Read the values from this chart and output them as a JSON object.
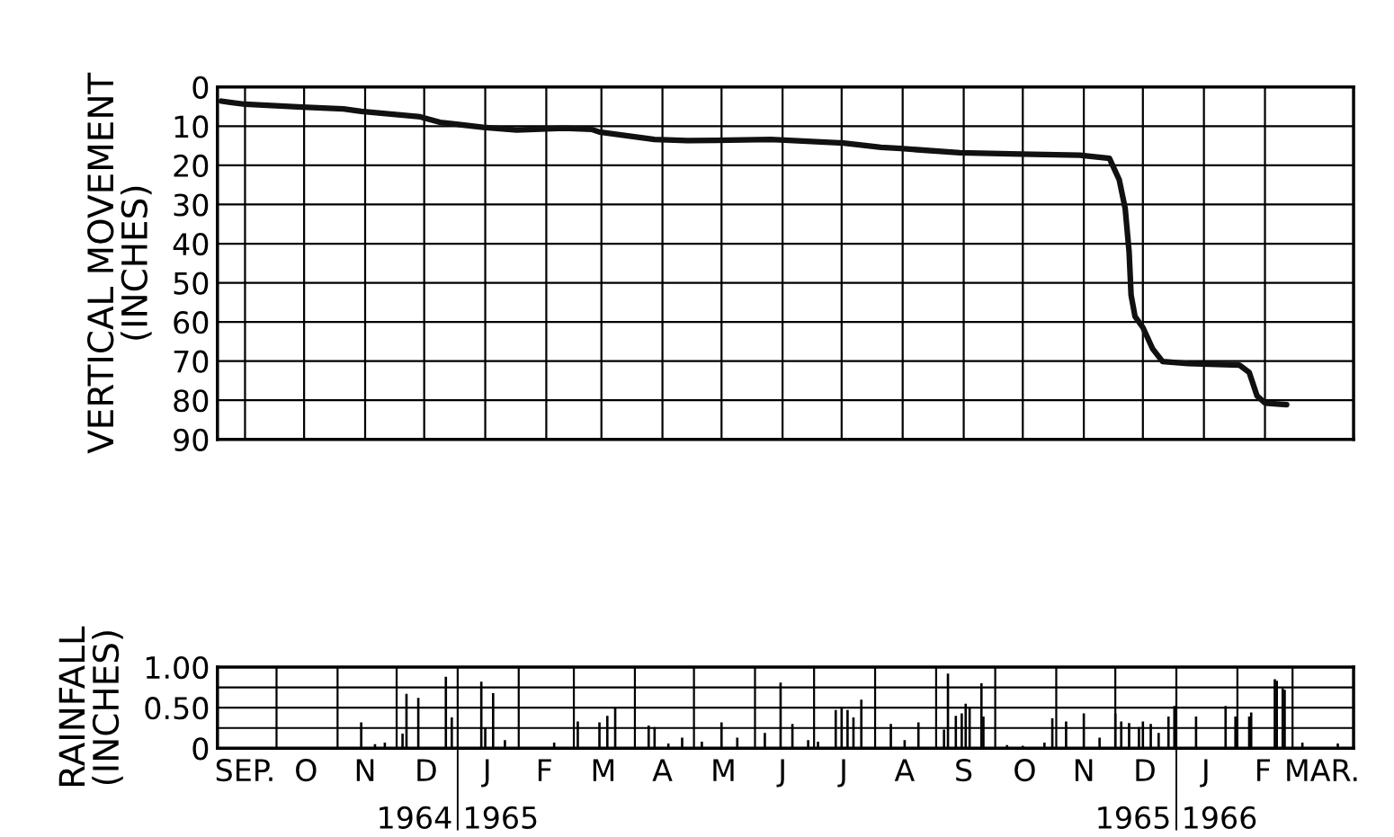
{
  "chart_data": [
    {
      "type": "line",
      "ylabel": "VERTICAL MOVEMENT\n(INCHES)",
      "x": [
        "1964-09-03",
        "1964-09-15",
        "1964-10-14",
        "1964-11-04",
        "1964-11-13",
        "1964-12-13",
        "1964-12-23",
        "1965-01-14",
        "1965-01-31",
        "1965-02-24",
        "1965-03-10",
        "1965-03-14",
        "1965-04-11",
        "1965-04-29",
        "1965-05-12",
        "1965-06-09",
        "1965-07-16",
        "1965-08-04",
        "1965-08-14",
        "1965-09-13",
        "1965-10-14",
        "1965-11-13",
        "1965-11-28",
        "1965-12-03",
        "1965-12-06",
        "1965-12-08",
        "1965-12-09",
        "1965-12-11",
        "1965-12-15",
        "1965-12-20",
        "1965-12-25",
        "1966-01-07",
        "1966-02-02",
        "1966-02-07",
        "1966-02-11",
        "1966-02-15",
        "1966-02-26"
      ],
      "series": [
        {
          "color": "#111111",
          "values": [
            3.6,
            4.4,
            5.1,
            5.6,
            6.2,
            7.6,
            9.0,
            10.3,
            11.0,
            10.5,
            10.8,
            11.5,
            13.4,
            13.7,
            13.6,
            13.4,
            14.3,
            15.4,
            15.7,
            16.8,
            17.1,
            17.4,
            18.2,
            23.7,
            31.0,
            42.1,
            53.1,
            58.6,
            61.4,
            66.9,
            70.1,
            70.6,
            71.0,
            72.9,
            78.9,
            80.7,
            81.1
          ]
        }
      ],
      "ylim": [
        90,
        0
      ],
      "yticks": [
        0,
        10,
        20,
        30,
        40,
        50,
        60,
        70,
        80,
        90
      ],
      "xlim": [
        "1964-09-01",
        "1966-04-01"
      ],
      "xticks": [
        {
          "value": "1964-09-15",
          "label": null
        },
        {
          "value": "1964-10-15",
          "label": null
        },
        {
          "value": "1964-11-15",
          "label": null
        },
        {
          "value": "1964-12-15",
          "label": null
        },
        {
          "value": "1965-01-15",
          "label": null
        },
        {
          "value": "1965-02-15",
          "label": null
        },
        {
          "value": "1965-03-15",
          "label": null
        },
        {
          "value": "1965-04-15",
          "label": null
        },
        {
          "value": "1965-05-15",
          "label": null
        },
        {
          "value": "1965-06-15",
          "label": null
        },
        {
          "value": "1965-07-15",
          "label": null
        },
        {
          "value": "1965-08-15",
          "label": null
        },
        {
          "value": "1965-09-15",
          "label": null
        },
        {
          "value": "1965-10-15",
          "label": null
        },
        {
          "value": "1965-11-15",
          "label": null
        },
        {
          "value": "1965-12-15",
          "label": null
        },
        {
          "value": "1966-01-15",
          "label": null
        },
        {
          "value": "1966-02-15",
          "label": null
        }
      ],
      "tick_labels": "y",
      "grid": true,
      "marker": "none",
      "line_style": "solid"
    },
    {
      "type": "bar",
      "ylabel": "RAINFALL\n(INCHES)",
      "x": [
        "1964-11-13",
        "1964-11-20",
        "1964-11-25",
        "1964-12-04",
        "1964-12-06",
        "1964-12-12",
        "1964-12-26",
        "1964-12-29",
        "1965-01-13",
        "1965-01-15",
        "1965-01-19",
        "1965-01-25",
        "1965-02-19",
        "1965-03-03",
        "1965-03-14",
        "1965-03-18",
        "1965-03-22",
        "1965-04-08",
        "1965-04-11",
        "1965-04-18",
        "1965-04-25",
        "1965-05-05",
        "1965-05-15",
        "1965-05-23",
        "1965-06-06",
        "1965-06-14",
        "1965-06-20",
        "1965-06-28",
        "1965-07-03",
        "1965-07-12",
        "1965-07-15",
        "1965-07-18",
        "1965-07-21",
        "1965-07-25",
        "1965-08-09",
        "1965-08-16",
        "1965-08-23",
        "1965-09-05",
        "1965-09-07",
        "1965-09-11",
        "1965-09-14",
        "1965-09-16",
        "1965-09-18",
        "1965-09-24",
        "1965-09-25",
        "1965-10-07",
        "1965-10-15",
        "1965-10-26",
        "1965-10-30",
        "1965-11-06",
        "1965-11-15",
        "1965-11-23",
        "1965-12-01",
        "1965-12-04",
        "1965-12-08",
        "1965-12-13",
        "1965-12-15",
        "1965-12-19",
        "1965-12-23",
        "1965-12-28",
        "1965-12-31",
        "1966-01-11",
        "1966-01-26",
        "1966-01-31",
        "1966-02-07",
        "1966-02-08",
        "1966-02-20",
        "1966-02-21",
        "1966-02-24",
        "1966-02-25",
        "1966-03-06",
        "1966-03-24"
      ],
      "series": [
        {
          "color": "#000000",
          "values": [
            0.32,
            0.05,
            0.07,
            0.18,
            0.67,
            0.62,
            0.88,
            0.38,
            0.82,
            0.25,
            0.68,
            0.1,
            0.07,
            0.33,
            0.32,
            0.4,
            0.51,
            0.28,
            0.26,
            0.06,
            0.13,
            0.08,
            0.32,
            0.13,
            0.19,
            0.81,
            0.3,
            0.1,
            0.08,
            0.47,
            0.49,
            0.47,
            0.38,
            0.6,
            0.3,
            0.1,
            0.32,
            0.23,
            0.92,
            0.4,
            0.43,
            0.55,
            0.51,
            0.8,
            0.39,
            0.04,
            0.03,
            0.07,
            0.37,
            0.33,
            0.43,
            0.13,
            0.43,
            0.33,
            0.31,
            0.26,
            0.33,
            0.3,
            0.19,
            0.39,
            0.52,
            0.39,
            0.52,
            0.39,
            0.39,
            0.44,
            0.85,
            0.83,
            0.74,
            0.72,
            0.07,
            0.06
          ]
        }
      ],
      "ylim": [
        0,
        1.0
      ],
      "yticks": [
        0,
        {
          "value": 0.25,
          "label": null
        },
        {
          "value": 0.5,
          "label": "0.50"
        },
        {
          "value": 0.75,
          "label": null
        },
        {
          "value": 1.0,
          "label": "1.00"
        }
      ],
      "xlim": [
        "1964-09-01",
        "1966-04-01"
      ],
      "xticks": [
        {
          "value": "1964-09-15",
          "label": "SEP."
        },
        {
          "value": "1964-10-01",
          "label": null
        },
        {
          "value": "1964-10-16",
          "label": "O"
        },
        {
          "value": "1964-11-01",
          "label": null
        },
        {
          "value": "1964-11-15",
          "label": "N"
        },
        {
          "value": "1964-12-01",
          "label": null
        },
        {
          "value": "1964-12-16",
          "label": "D"
        },
        {
          "value": "1965-01-16",
          "label": "J"
        },
        {
          "value": "1965-02-01",
          "label": null
        },
        {
          "value": "1965-02-14",
          "label": "F"
        },
        {
          "value": "1965-03-01",
          "label": null
        },
        {
          "value": "1965-03-16",
          "label": "M"
        },
        {
          "value": "1965-04-01",
          "label": null
        },
        {
          "value": "1965-04-15",
          "label": "A"
        },
        {
          "value": "1965-05-01",
          "label": null
        },
        {
          "value": "1965-05-16",
          "label": "M"
        },
        {
          "value": "1965-06-01",
          "label": null
        },
        {
          "value": "1965-06-15",
          "label": "J"
        },
        {
          "value": "1965-07-01",
          "label": null
        },
        {
          "value": "1965-07-16",
          "label": "J"
        },
        {
          "value": "1965-08-01",
          "label": null
        },
        {
          "value": "1965-08-16",
          "label": "A"
        },
        {
          "value": "1965-09-01",
          "label": null
        },
        {
          "value": "1965-09-15",
          "label": "S"
        },
        {
          "value": "1965-10-01",
          "label": null
        },
        {
          "value": "1965-10-16",
          "label": "O"
        },
        {
          "value": "1965-11-01",
          "label": null
        },
        {
          "value": "1965-11-15",
          "label": "N"
        },
        {
          "value": "1965-12-01",
          "label": null
        },
        {
          "value": "1965-12-16",
          "label": "D"
        },
        {
          "value": "1966-01-16",
          "label": "J"
        },
        {
          "value": "1966-02-01",
          "label": null
        },
        {
          "value": "1966-02-14",
          "label": "F"
        },
        {
          "value": "1966-03-01",
          "label": null
        },
        {
          "value": "1966-03-16",
          "label": "MAR."
        }
      ],
      "ref_lines": [
        {
          "axis": "x",
          "value": "1965-01-01",
          "color": "#000000"
        },
        {
          "axis": "x",
          "value": "1966-01-01",
          "color": "#000000"
        }
      ],
      "annotations": [
        "1964",
        "1965",
        "1965",
        "1966"
      ],
      "grid": true
    }
  ]
}
